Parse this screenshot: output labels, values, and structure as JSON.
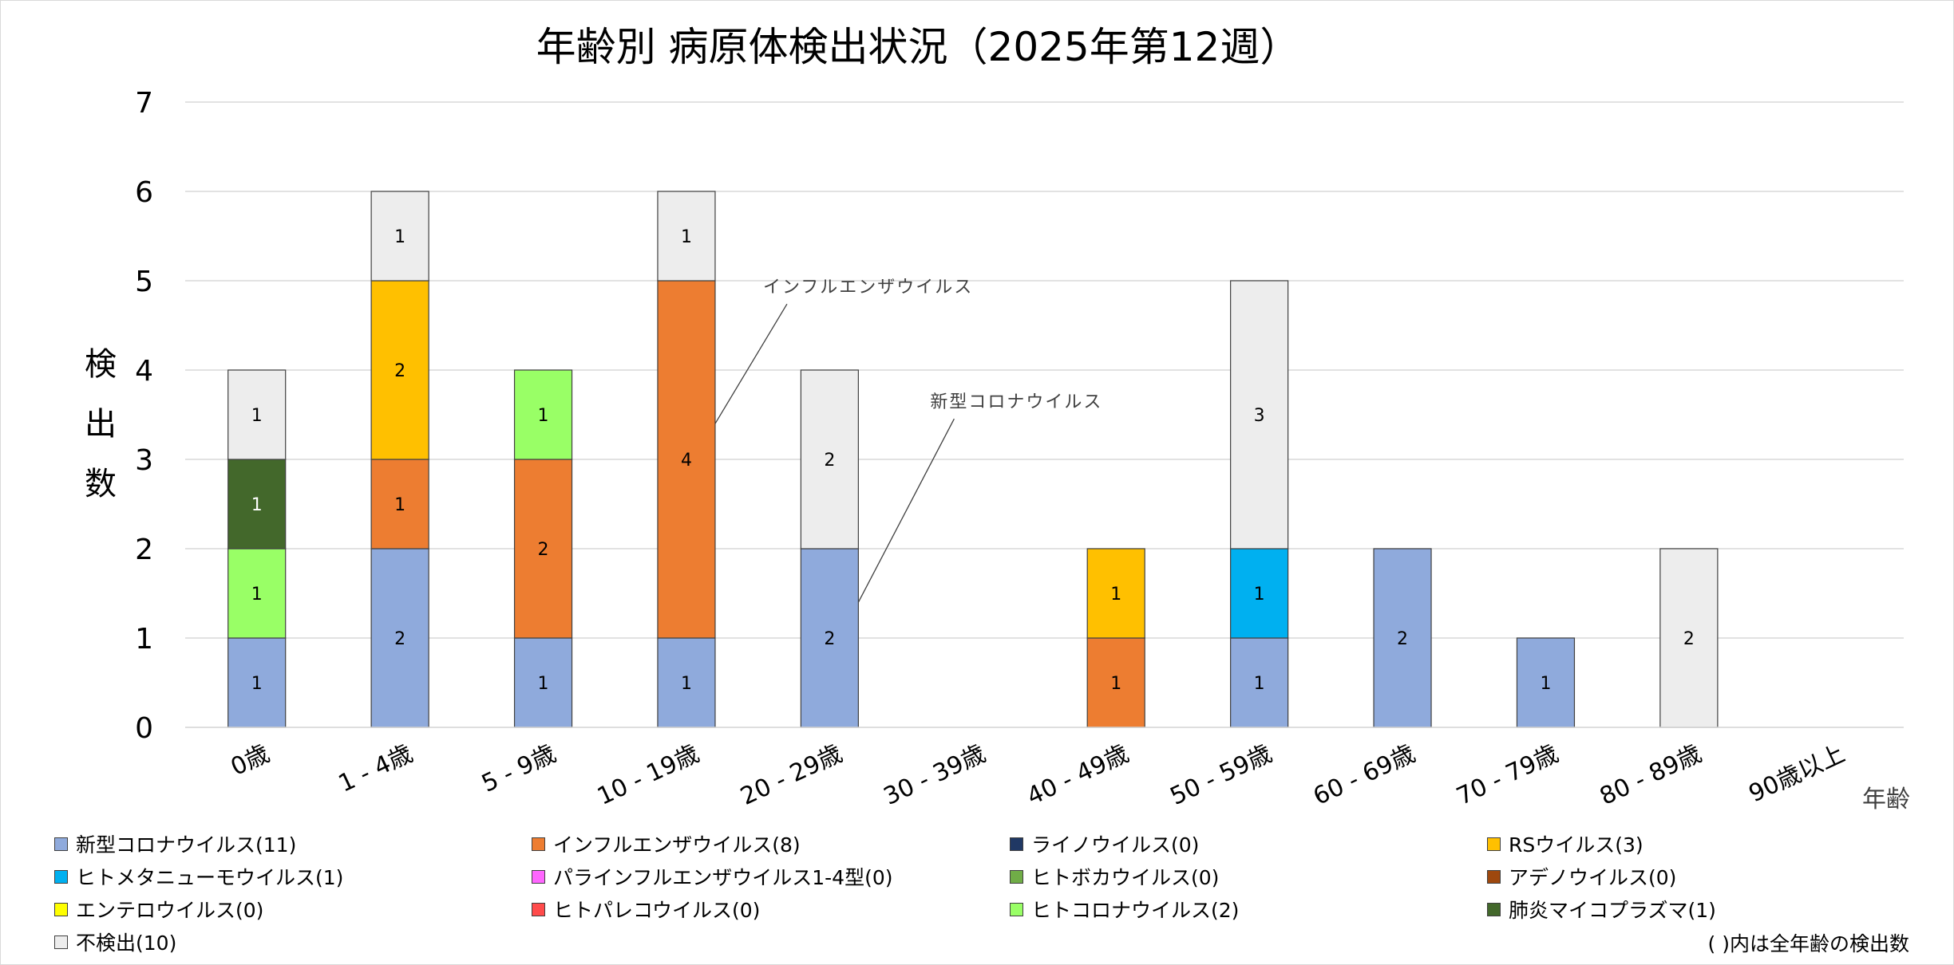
{
  "chart_data": {
    "type": "bar",
    "stacked": true,
    "title": "年齢別 病原体検出状況（2025年第12週）",
    "xlabel": "年齢",
    "ylabel": "検出数",
    "ylim": [
      0,
      7
    ],
    "yticks": [
      0,
      1,
      2,
      3,
      4,
      5,
      6,
      7
    ],
    "grid": true,
    "legend_position": "bottom",
    "categories": [
      "0歳",
      "1 - 4歳",
      "5 - 9歳",
      "10 - 19歳",
      "20 - 29歳",
      "30 - 39歳",
      "40 - 49歳",
      "50 - 59歳",
      "60 - 69歳",
      "70 - 79歳",
      "80 - 89歳",
      "90歳以上"
    ],
    "series": [
      {
        "name": "新型コロナウイルス",
        "legend_label": "新型コロナウイルス(11)",
        "color": "#8faadc",
        "values": [
          1,
          2,
          1,
          1,
          2,
          0,
          0,
          1,
          2,
          1,
          0,
          0
        ]
      },
      {
        "name": "インフルエンザウイルス",
        "legend_label": "インフルエンザウイルス(8)",
        "color": "#ed7d31",
        "values": [
          0,
          1,
          2,
          4,
          0,
          0,
          1,
          0,
          0,
          0,
          0,
          0
        ]
      },
      {
        "name": "ライノウイルス",
        "legend_label": "ライノウイルス(0)",
        "color": "#203864",
        "values": [
          0,
          0,
          0,
          0,
          0,
          0,
          0,
          0,
          0,
          0,
          0,
          0
        ]
      },
      {
        "name": "RSウイルス",
        "legend_label": "RSウイルス(3)",
        "color": "#ffc000",
        "values": [
          0,
          2,
          0,
          0,
          0,
          0,
          1,
          0,
          0,
          0,
          0,
          0
        ]
      },
      {
        "name": "ヒトメタニューモウイルス",
        "legend_label": "ヒトメタニューモウイルス(1)",
        "color": "#00b0f0",
        "values": [
          0,
          0,
          0,
          0,
          0,
          0,
          0,
          1,
          0,
          0,
          0,
          0
        ]
      },
      {
        "name": "パラインフルエンザウイルス1-4型",
        "legend_label": "パラインフルエンザウイルス1-4型(0)",
        "color": "#ff66ff",
        "values": [
          0,
          0,
          0,
          0,
          0,
          0,
          0,
          0,
          0,
          0,
          0,
          0
        ]
      },
      {
        "name": "ヒトボカウイルス",
        "legend_label": "ヒトボカウイルス(0)",
        "color": "#70ad47",
        "values": [
          0,
          0,
          0,
          0,
          0,
          0,
          0,
          0,
          0,
          0,
          0,
          0
        ]
      },
      {
        "name": "アデノウイルス",
        "legend_label": "アデノウイルス(0)",
        "color": "#9e480e",
        "values": [
          0,
          0,
          0,
          0,
          0,
          0,
          0,
          0,
          0,
          0,
          0,
          0
        ]
      },
      {
        "name": "エンテロウイルス",
        "legend_label": "エンテロウイルス(0)",
        "color": "#ffff00",
        "values": [
          0,
          0,
          0,
          0,
          0,
          0,
          0,
          0,
          0,
          0,
          0,
          0
        ]
      },
      {
        "name": "ヒトパレコウイルス",
        "legend_label": "ヒトパレコウイルス(0)",
        "color": "#ff4b4b",
        "values": [
          0,
          0,
          0,
          0,
          0,
          0,
          0,
          0,
          0,
          0,
          0,
          0
        ]
      },
      {
        "name": "ヒトコロナウイルス",
        "legend_label": "ヒトコロナウイルス(2)",
        "color": "#99ff66",
        "values": [
          1,
          0,
          1,
          0,
          0,
          0,
          0,
          0,
          0,
          0,
          0,
          0
        ]
      },
      {
        "name": "肺炎マイコプラズマ",
        "legend_label": "肺炎マイコプラズマ(1)",
        "color": "#43682b",
        "values": [
          1,
          0,
          0,
          0,
          0,
          0,
          0,
          0,
          0,
          0,
          0,
          0
        ]
      },
      {
        "name": "不検出",
        "legend_label": "不検出(10)",
        "color": "#ededed",
        "values": [
          1,
          1,
          0,
          1,
          2,
          0,
          0,
          3,
          0,
          0,
          2,
          0
        ]
      }
    ],
    "annotations": [
      {
        "text": "インフルエンザウイルス",
        "category": "10 - 19歳",
        "series": "インフルエンザウイルス"
      },
      {
        "text": "新型コロナウイルス",
        "category": "20 - 29歳",
        "series": "新型コロナウイルス"
      }
    ],
    "legend_note": "( )内は全年齢の検出数"
  }
}
